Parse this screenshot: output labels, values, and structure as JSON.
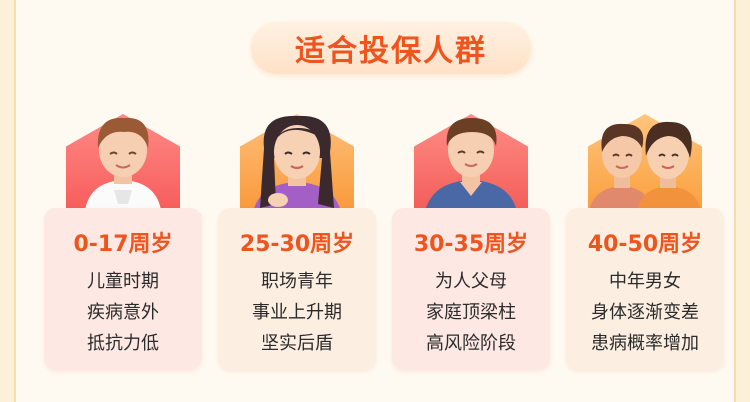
{
  "title": "适合投保人群",
  "groups": [
    {
      "age": "0-17周岁",
      "lines": [
        "儿童时期",
        "疾病意外",
        "抵抗力低"
      ]
    },
    {
      "age": "25-30周岁",
      "lines": [
        "职场青年",
        "事业上升期",
        "坚实后盾"
      ]
    },
    {
      "age": "30-35周岁",
      "lines": [
        "为人父母",
        "家庭顶梁柱",
        "高风险阶段"
      ]
    },
    {
      "age": "40-50周岁",
      "lines": [
        "中年男女",
        "身体逐渐变差",
        "患病概率增加"
      ]
    }
  ],
  "colors": {
    "accent": "#f0541e",
    "page_bg": "#fffaf1",
    "hex_red": "#f44d4d",
    "hex_orange": "#f78c24"
  }
}
